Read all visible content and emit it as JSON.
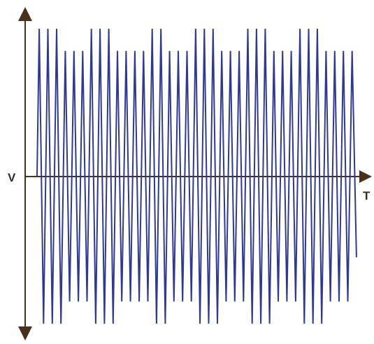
{
  "chart_data": {
    "type": "line",
    "xlabel": "T",
    "ylabel": "V",
    "grid": false,
    "legend": "none",
    "line_color": "#2f3a8f",
    "axis_color": "#4a2f1a",
    "series": [
      {
        "peaks": [
          1,
          1,
          1,
          0.85,
          0.85,
          0.85,
          1,
          1,
          1,
          0.85,
          0.85,
          0.85,
          0.85,
          1,
          1,
          0.85,
          0.85,
          0.85,
          1,
          1,
          1,
          0.85,
          0.85,
          0.85,
          1,
          1,
          1,
          0.85,
          0.85,
          0.85,
          1,
          1,
          1,
          0.85,
          0.85,
          0.85,
          0.85
        ],
        "troughs": [
          -1,
          -1,
          -1,
          -0.85,
          -0.85,
          -0.85,
          -1,
          -1,
          -1,
          -0.85,
          -0.85,
          -0.85,
          -0.85,
          -1,
          -1,
          -0.85,
          -0.85,
          -0.85,
          -1,
          -1,
          -1,
          -0.85,
          -0.85,
          -0.85,
          -1,
          -1,
          -1,
          -0.85,
          -0.85,
          -0.85,
          -1,
          -1,
          -1,
          -0.85,
          -0.85,
          -0.85,
          -0.55
        ],
        "ylim": [
          -1.1,
          1.1
        ]
      }
    ]
  }
}
